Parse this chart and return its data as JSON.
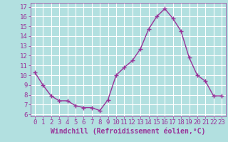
{
  "x": [
    0,
    1,
    2,
    3,
    4,
    5,
    6,
    7,
    8,
    9,
    10,
    11,
    12,
    13,
    14,
    15,
    16,
    17,
    18,
    19,
    20,
    21,
    22,
    23
  ],
  "y": [
    10.3,
    9.0,
    7.9,
    7.4,
    7.4,
    6.9,
    6.7,
    6.7,
    6.4,
    7.5,
    10.0,
    10.8,
    11.5,
    12.7,
    14.7,
    16.0,
    16.8,
    15.8,
    14.5,
    11.8,
    10.0,
    9.4,
    7.9,
    7.9
  ],
  "line_color": "#993399",
  "marker": "+",
  "marker_size": 4,
  "marker_linewidth": 1.0,
  "background_color": "#b2e0e0",
  "grid_color": "#ffffff",
  "xlabel": "Windchill (Refroidissement éolien,°C)",
  "xlabel_color": "#993399",
  "tick_color": "#993399",
  "ylim": [
    5.8,
    17.4
  ],
  "xlim": [
    -0.5,
    23.5
  ],
  "yticks": [
    6,
    7,
    8,
    9,
    10,
    11,
    12,
    13,
    14,
    15,
    16,
    17
  ],
  "xticks": [
    0,
    1,
    2,
    3,
    4,
    5,
    6,
    7,
    8,
    9,
    10,
    11,
    12,
    13,
    14,
    15,
    16,
    17,
    18,
    19,
    20,
    21,
    22,
    23
  ],
  "font_family": "monospace",
  "tick_fontsize": 6.5,
  "xlabel_fontsize": 7.0
}
